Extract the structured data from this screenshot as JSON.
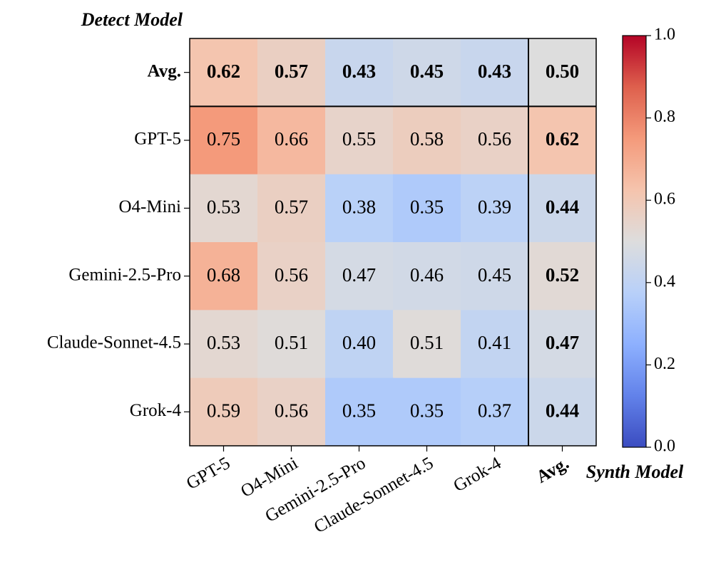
{
  "chart_data": {
    "type": "heatmap",
    "y_title": "Detect Model",
    "x_title": "Synth Model",
    "x_categories": [
      "GPT-5",
      "O4-Mini",
      "Gemini-2.5-Pro",
      "Claude-Sonnet-4.5",
      "Grok-4",
      "Avg."
    ],
    "y_categories": [
      "Avg.",
      "GPT-5",
      "O4-Mini",
      "Gemini-2.5-Pro",
      "Claude-Sonnet-4.5",
      "Grok-4"
    ],
    "values": [
      [
        0.62,
        0.57,
        0.43,
        0.45,
        0.43,
        0.5
      ],
      [
        0.75,
        0.66,
        0.55,
        0.58,
        0.56,
        0.62
      ],
      [
        0.53,
        0.57,
        0.38,
        0.35,
        0.39,
        0.44
      ],
      [
        0.68,
        0.56,
        0.47,
        0.46,
        0.45,
        0.52
      ],
      [
        0.53,
        0.51,
        0.4,
        0.51,
        0.41,
        0.47
      ],
      [
        0.59,
        0.56,
        0.35,
        0.35,
        0.37,
        0.44
      ]
    ],
    "value_labels": [
      [
        "0.62",
        "0.57",
        "0.43",
        "0.45",
        "0.43",
        "0.50"
      ],
      [
        "0.75",
        "0.66",
        "0.55",
        "0.58",
        "0.56",
        "0.62"
      ],
      [
        "0.53",
        "0.57",
        "0.38",
        "0.35",
        "0.39",
        "0.44"
      ],
      [
        "0.68",
        "0.56",
        "0.47",
        "0.46",
        "0.45",
        "0.52"
      ],
      [
        "0.53",
        "0.51",
        "0.40",
        "0.51",
        "0.41",
        "0.47"
      ],
      [
        "0.59",
        "0.56",
        "0.35",
        "0.35",
        "0.37",
        "0.44"
      ]
    ],
    "colormap": "coolwarm",
    "zlim": [
      0,
      1
    ],
    "zticks": [
      {
        "value": 0,
        "label": "0.0"
      },
      0.2,
      0.4,
      0.6,
      0.8,
      {
        "value": 1,
        "label": "1.0"
      }
    ]
  }
}
